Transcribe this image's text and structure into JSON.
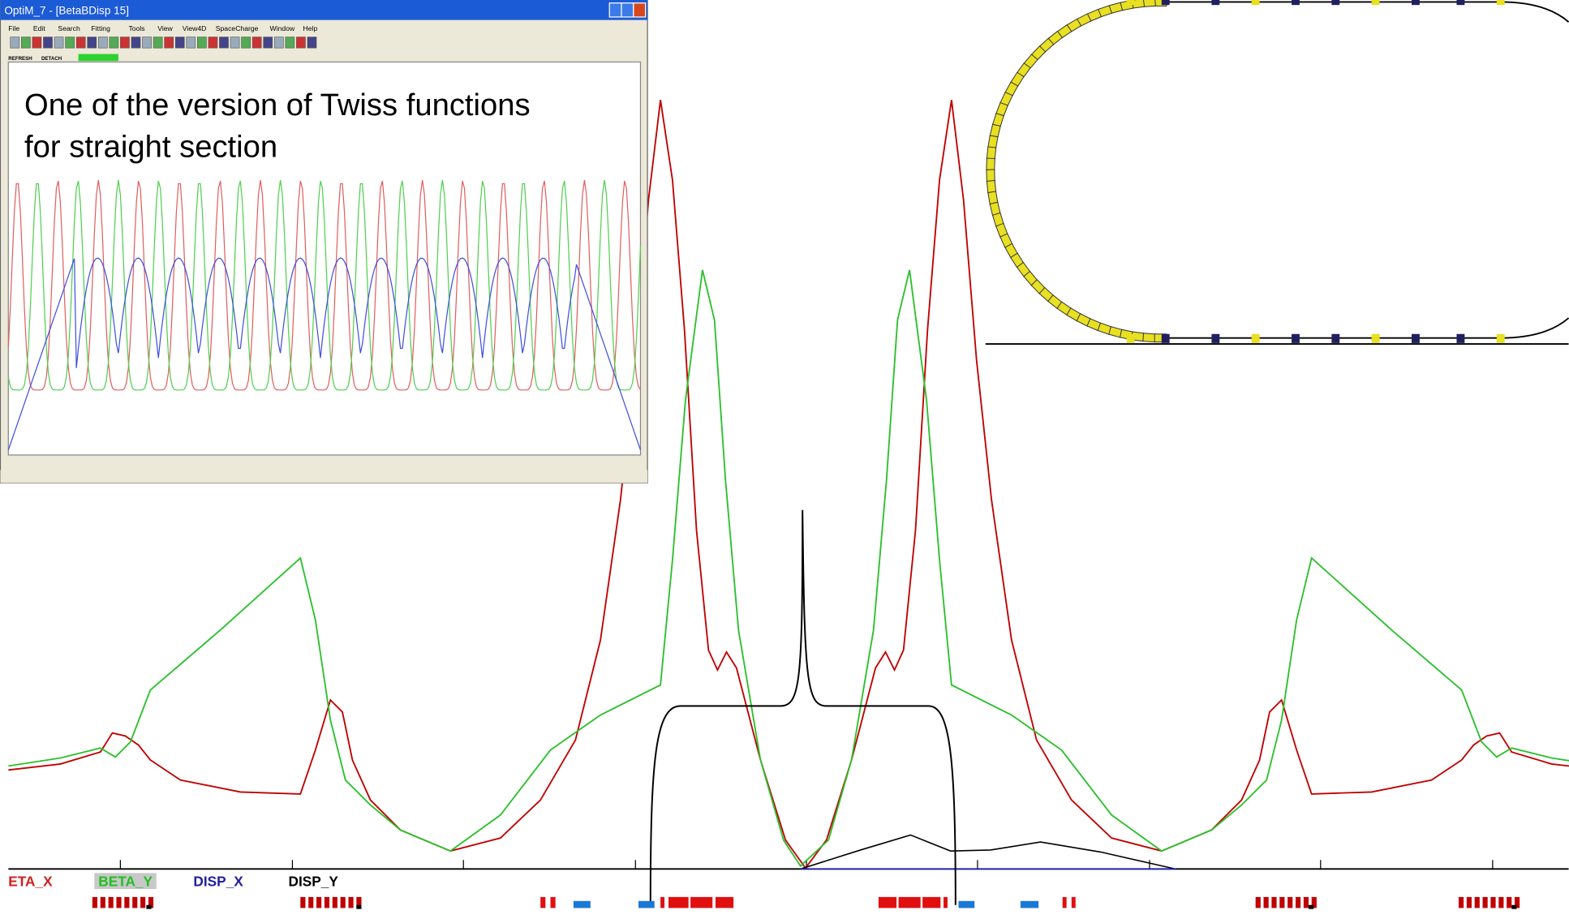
{
  "window": {
    "title": "OptiM_7 - [BetaBDisp 15]",
    "menu": [
      "File",
      "Edit",
      "Search",
      "Fitting",
      "Tools",
      "View",
      "View4D",
      "SpaceCharge",
      "Window",
      "Help"
    ],
    "buttons": [
      "REFRESH",
      "DETACH"
    ]
  },
  "annotation": [
    "One of the version of Twiss functions",
    "for straight section"
  ],
  "legend": [
    "ETA_X",
    "BETA_Y",
    "DISP_X",
    "DISP_Y"
  ]
}
